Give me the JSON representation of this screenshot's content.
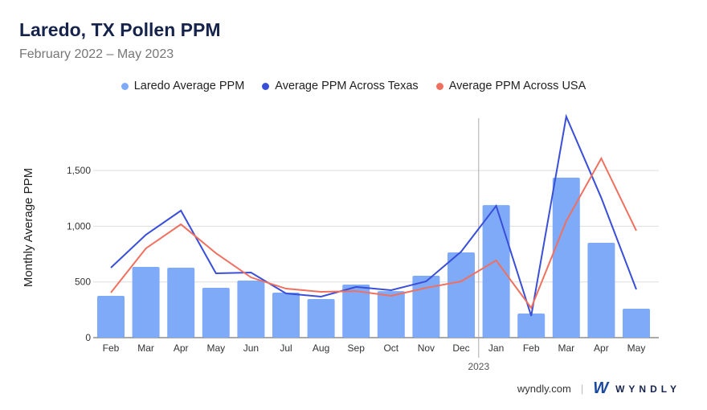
{
  "chart_data": {
    "type": "bar+line",
    "title": "Laredo, TX Pollen PPM",
    "subtitle": "February 2022 – May 2023",
    "ylabel": "Monthly Average PPM",
    "ylim": [
      0,
      2000
    ],
    "yticks": [
      {
        "v": 0,
        "label": "0"
      },
      {
        "v": 500,
        "label": "500"
      },
      {
        "v": 1000,
        "label": "1,000"
      },
      {
        "v": 1500,
        "label": "1,500"
      }
    ],
    "categories": [
      "Feb",
      "Mar",
      "Apr",
      "May",
      "Jun",
      "Jul",
      "Aug",
      "Sep",
      "Oct",
      "Nov",
      "Dec",
      "Jan",
      "Feb",
      "Mar",
      "Apr",
      "May"
    ],
    "year_marker": {
      "label": "2023",
      "before_index": 11
    },
    "series": [
      {
        "name": "Laredo Average PPM",
        "type": "bar",
        "color": "#7eaaf8",
        "values": [
          375,
          635,
          628,
          447,
          512,
          404,
          346,
          476,
          418,
          556,
          765,
          1190,
          216,
          1436,
          851,
          260
        ]
      },
      {
        "name": "Average PPM Across Texas",
        "type": "line",
        "color": "#3a4fd8",
        "values": [
          628,
          923,
          1140,
          577,
          584,
          397,
          368,
          455,
          426,
          505,
          772,
          1183,
          195,
          1984,
          1255,
          433
        ]
      },
      {
        "name": "Average PPM Across USA",
        "type": "line",
        "color": "#f0705f",
        "values": [
          404,
          801,
          1017,
          758,
          541,
          440,
          411,
          418,
          375,
          447,
          505,
          693,
          267,
          1046,
          1609,
          960
        ]
      }
    ],
    "legend": "top-center",
    "grid": true
  },
  "footer": {
    "site": "wyndly.com",
    "brand": "WYNDLY",
    "logo": "W"
  }
}
